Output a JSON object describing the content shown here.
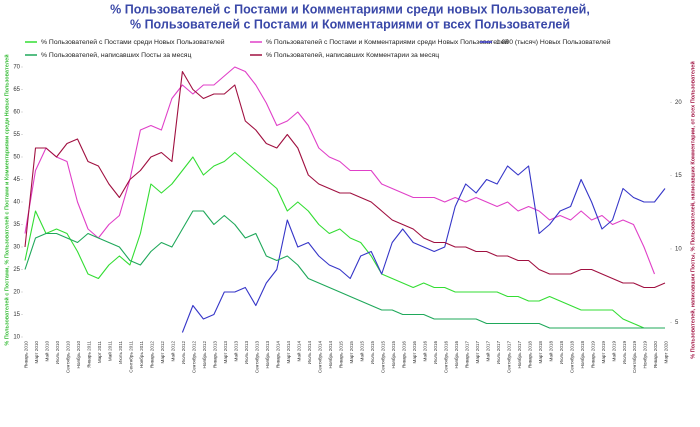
{
  "chart_data": {
    "type": "line",
    "title": [
      "% Пользователей с Постами и Комментариями среди новых Пользователей,",
      "% Пользователей с Постами и Комментариями от всех Пользователей"
    ],
    "ylabel": "% Пользователей с Постами, % Пользователей с Постами и Комментариями среди Новых Пользователей",
    "y2label": "% Пользователей, написавших Посты, % Пользователей, написавших Комментарии, от всех Пользователей",
    "categories": [
      "Январь 2010",
      "Март 2010",
      "Май 2010",
      "Июль 2010",
      "Сентябрь 2010",
      "Ноябрь 2010",
      "Январь 2011",
      "Март 2011",
      "Май 2011",
      "Июль 2011",
      "Сентябрь 2011",
      "Ноябрь 2011",
      "Январь 2012",
      "Март 2012",
      "Май 2012",
      "Июль 2012",
      "Сентябрь 2012",
      "Ноябрь 2012",
      "Январь 2013",
      "Март 2013",
      "Май 2013",
      "Июль 2013",
      "Сентябрь 2013",
      "Ноябрь 2013",
      "Январь 2014",
      "Март 2014",
      "Май 2014",
      "Июль 2014",
      "Сентябрь 2014",
      "Ноябрь 2014",
      "Январь 2015",
      "Март 2015",
      "Май 2015",
      "Июль 2015",
      "Сентябрь 2015",
      "Ноябрь 2015",
      "Январь 2016",
      "Март 2016",
      "Май 2016",
      "Июль 2016",
      "Сентябрь 2016",
      "Ноябрь 2016",
      "Январь 2017",
      "Март 2017",
      "Май 2017",
      "Июль 2017",
      "Сентябрь 2017",
      "Ноябрь 2017",
      "Январь 2018",
      "Март 2018",
      "Май 2018",
      "Июль 2018",
      "Сентябрь 2018",
      "Ноябрь 2018",
      "Январь 2019",
      "Март 2019",
      "Май 2019",
      "Июль 2019",
      "Сентябрь 2019",
      "Ноябрь 2019",
      "Январь 2020",
      "Март 2020"
    ],
    "series": [
      {
        "name": "% Пользователей с Постами среди Новых Пользователей",
        "color": "#33dd33",
        "values": [
          27,
          38,
          33,
          34,
          33,
          29,
          24,
          23,
          26,
          28,
          26,
          33,
          44,
          42,
          44,
          47,
          50,
          46,
          48,
          49,
          51,
          49,
          47,
          45,
          43,
          38,
          40,
          38,
          35,
          33,
          34,
          32,
          31,
          28,
          24,
          23,
          22,
          21,
          22,
          21,
          21,
          20,
          20,
          20,
          20,
          20,
          19,
          19,
          18,
          18,
          19,
          18,
          17,
          16,
          16,
          16,
          16,
          14,
          13,
          12,
          12,
          12
        ]
      },
      {
        "name": "% Пользователей с Постами и Комментариями среди Новых Пользователей",
        "color": "#e040c8",
        "values": [
          33,
          47,
          52,
          50,
          49,
          40,
          34,
          32,
          35,
          37,
          45,
          56,
          57,
          56,
          63,
          66,
          64,
          66,
          66,
          68,
          70,
          69,
          66,
          62,
          57,
          58,
          60,
          57,
          52,
          50,
          49,
          47,
          47,
          47,
          44,
          43,
          42,
          41,
          41,
          41,
          40,
          41,
          40,
          41,
          40,
          39,
          40,
          38,
          39,
          38,
          36,
          37,
          36,
          38,
          36,
          37,
          35,
          36,
          35,
          30,
          24,
          null
        ]
      },
      {
        "name": "1 000 (тысяч) Новых Пользователей",
        "color": "#3636c8",
        "values": [
          null,
          null,
          null,
          null,
          null,
          null,
          null,
          null,
          null,
          null,
          null,
          null,
          null,
          null,
          null,
          11,
          17,
          14,
          15,
          20,
          20,
          21,
          17,
          22,
          25,
          36,
          30,
          31,
          28,
          26,
          25,
          23,
          28,
          29,
          24,
          31,
          34,
          31,
          30,
          29,
          30,
          39,
          44,
          42,
          45,
          44,
          48,
          46,
          48,
          33,
          35,
          38,
          39,
          45,
          40,
          34,
          36,
          43,
          41,
          40,
          40,
          43
        ]
      },
      {
        "name": "% Пользователей, написавших Посты за месяц",
        "color": "#1fa85a",
        "values": [
          25,
          32,
          33,
          33,
          32,
          31,
          33,
          32,
          31,
          30,
          27,
          26,
          29,
          31,
          30,
          34,
          38,
          38,
          35,
          37,
          35,
          32,
          33,
          28,
          27,
          28,
          26,
          23,
          22,
          21,
          20,
          19,
          18,
          17,
          16,
          16,
          15,
          15,
          15,
          14,
          14,
          14,
          14,
          14,
          13,
          13,
          13,
          13,
          13,
          13,
          12,
          12,
          12,
          12,
          12,
          12,
          12,
          12,
          12,
          12,
          12,
          12
        ]
      },
      {
        "name": "% Пользователей, написавших Комментарии за месяц",
        "color": "#a01040",
        "values": [
          30,
          52,
          52,
          50,
          53,
          54,
          49,
          48,
          44,
          41,
          45,
          47,
          50,
          51,
          49,
          69,
          65,
          63,
          64,
          64,
          66,
          58,
          56,
          53,
          52,
          55,
          52,
          46,
          44,
          43,
          42,
          42,
          41,
          40,
          38,
          36,
          35,
          34,
          32,
          31,
          31,
          30,
          30,
          29,
          29,
          28,
          28,
          27,
          27,
          25,
          24,
          24,
          24,
          25,
          25,
          24,
          23,
          22,
          22,
          21,
          21,
          22
        ]
      }
    ],
    "ylim": [
      10,
      70
    ],
    "yticks": [
      10,
      15,
      20,
      25,
      30,
      35,
      40,
      45,
      50,
      55,
      60,
      65,
      70
    ],
    "y2lim": [
      4,
      22.4
    ],
    "y2ticks": [
      5,
      10,
      15,
      20
    ],
    "grid": false
  }
}
